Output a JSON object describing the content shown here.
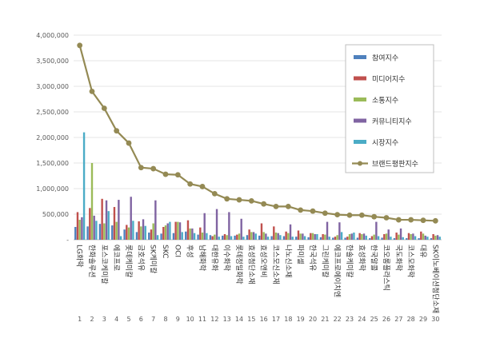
{
  "chart_data": {
    "type": "bar",
    "ylim": [
      0,
      4000000
    ],
    "yticks": [
      "-",
      "500,000",
      "1,000,000",
      "1,500,000",
      "2,000,000",
      "2,500,000",
      "3,000,000",
      "3,500,000",
      "4,000,000"
    ],
    "ranks": [
      "1",
      "2",
      "3",
      "4",
      "5",
      "6",
      "7",
      "8",
      "9",
      "10",
      "11",
      "12",
      "13",
      "14",
      "15",
      "16",
      "17",
      "18",
      "19",
      "20",
      "21",
      "22",
      "23",
      "24",
      "25",
      "26",
      "27",
      "28",
      "29",
      "30"
    ],
    "categories": [
      "LG화학",
      "한화솔루션",
      "포스코케미칼",
      "에코프로",
      "롯데케미칼",
      "금호석유",
      "SK케미칼",
      "SKC",
      "OCI",
      "후성",
      "남해화학",
      "대한유화",
      "이수화학",
      "롯데정밀화학",
      "효성첨단소재",
      "효성오앤비",
      "코스모신소재",
      "나노신소재",
      "파미셀",
      "한국석유",
      "그린케미칼",
      "에코프로에이치엔",
      "한솔케미칼",
      "효성화학",
      "한국알콜",
      "코오롱플라스틱",
      "국도화학",
      "코스모화학",
      "대유",
      "SK이노베이션첨단소재"
    ],
    "series": [
      {
        "name": "참여지수",
        "color": "#4F81BD",
        "type": "bar",
        "values": [
          250000,
          260000,
          310000,
          280000,
          200000,
          150000,
          140000,
          120000,
          130000,
          160000,
          100000,
          90000,
          80000,
          80000,
          90000,
          80000,
          70000,
          70000,
          60000,
          50000,
          50000,
          40000,
          40000,
          40000,
          30000,
          40000,
          30000,
          30000,
          30000,
          30000
        ]
      },
      {
        "name": "미디어지수",
        "color": "#C0504D",
        "type": "bar",
        "values": [
          540000,
          620000,
          800000,
          640000,
          290000,
          360000,
          200000,
          250000,
          350000,
          380000,
          240000,
          70000,
          110000,
          100000,
          200000,
          320000,
          260000,
          160000,
          180000,
          130000,
          110000,
          60000,
          60000,
          130000,
          70000,
          110000,
          140000,
          130000,
          160000,
          110000
        ]
      },
      {
        "name": "소통지수",
        "color": "#9BBB59",
        "type": "bar",
        "values": [
          390000,
          1500000,
          320000,
          350000,
          240000,
          260000,
          320000,
          280000,
          350000,
          220000,
          140000,
          100000,
          90000,
          120000,
          150000,
          150000,
          140000,
          130000,
          120000,
          130000,
          100000,
          90000,
          110000,
          110000,
          100000,
          120000,
          100000,
          110000,
          120000,
          80000
        ]
      },
      {
        "name": "커뮤니티지수",
        "color": "#8064A2",
        "type": "bar",
        "values": [
          440000,
          470000,
          770000,
          780000,
          840000,
          400000,
          770000,
          320000,
          340000,
          220000,
          520000,
          600000,
          540000,
          410000,
          150000,
          120000,
          130000,
          300000,
          120000,
          110000,
          350000,
          340000,
          120000,
          120000,
          350000,
          200000,
          220000,
          120000,
          80000,
          90000
        ]
      },
      {
        "name": "시장지수",
        "color": "#4BACC6",
        "type": "bar",
        "values": [
          2100000,
          370000,
          560000,
          70000,
          370000,
          270000,
          90000,
          350000,
          150000,
          130000,
          130000,
          60000,
          70000,
          60000,
          120000,
          60000,
          90000,
          60000,
          70000,
          110000,
          60000,
          150000,
          140000,
          80000,
          70000,
          60000,
          50000,
          70000,
          60000,
          60000
        ]
      },
      {
        "name": "브랜드평판지수",
        "color": "#948A54",
        "type": "line",
        "values": [
          3800000,
          2900000,
          2570000,
          2130000,
          1890000,
          1410000,
          1390000,
          1280000,
          1270000,
          1090000,
          1040000,
          900000,
          800000,
          780000,
          760000,
          700000,
          650000,
          650000,
          580000,
          560000,
          520000,
          490000,
          480000,
          480000,
          450000,
          430000,
          390000,
          390000,
          380000,
          370000
        ]
      }
    ]
  }
}
